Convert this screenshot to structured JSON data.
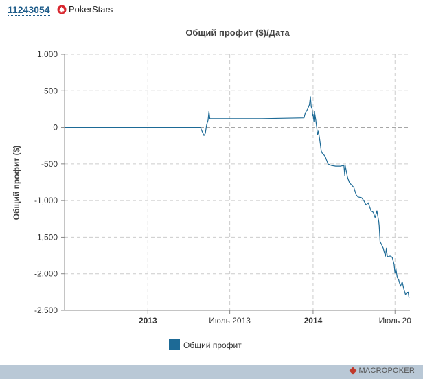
{
  "header": {
    "player_id": "11243054",
    "room_name": "PokerStars",
    "room_icon": "pokerstars-spade-icon"
  },
  "footer": {
    "brand": "MACROPOKER",
    "brand_icon": "macropoker-logo-icon"
  },
  "colors": {
    "series": "#1d6a96",
    "grid": "#cccccc",
    "axis": "#888888",
    "footer": "#b9c8d6"
  },
  "chart_data": {
    "type": "line",
    "title": "Общий профит ($)/Дата",
    "xlabel": "",
    "ylabel": "Общий профит ($)",
    "ylim": [
      -2500,
      1000
    ],
    "yticks": [
      1000,
      500,
      0,
      -500,
      -1000,
      -1500,
      -2000,
      -2500
    ],
    "ytick_labels": [
      "1,000",
      "500",
      "0",
      "-500",
      "-1,000",
      "-1,500",
      "-2,000",
      "-2,500"
    ],
    "xlim": [
      "2012-07-01",
      "2014-08-03"
    ],
    "xticks": [
      {
        "date": "2013-01-01",
        "label": "2013",
        "bold": true
      },
      {
        "date": "2013-07-01",
        "label": "Июль 2013",
        "bold": false
      },
      {
        "date": "2014-01-01",
        "label": "2014",
        "bold": true
      },
      {
        "date": "2014-07-01",
        "label": "Июль 20",
        "bold": false
      }
    ],
    "grid": true,
    "legend_position": "bottom",
    "series": [
      {
        "name": "Общий профит",
        "x": [
          "2012-07-01",
          "2013-04-27",
          "2013-05-05",
          "2013-05-08",
          "2013-05-11",
          "2013-05-14",
          "2013-05-16",
          "2013-05-18",
          "2013-09-10",
          "2013-12-12",
          "2013-12-15",
          "2013-12-20",
          "2013-12-24",
          "2013-12-26",
          "2013-12-28",
          "2013-12-30",
          "2013-12-31",
          "2014-01-01",
          "2014-01-03",
          "2014-01-04",
          "2014-01-07",
          "2014-01-09",
          "2014-01-11",
          "2014-01-13",
          "2014-01-16",
          "2014-01-19",
          "2014-01-21",
          "2014-01-23",
          "2014-01-28",
          "2014-02-03",
          "2014-02-10",
          "2014-02-20",
          "2014-03-03",
          "2014-03-10",
          "2014-03-12",
          "2014-03-13",
          "2014-03-18",
          "2014-03-22",
          "2014-03-26",
          "2014-04-01",
          "2014-04-06",
          "2014-04-10",
          "2014-04-18",
          "2014-04-23",
          "2014-04-28",
          "2014-05-03",
          "2014-05-09",
          "2014-05-14",
          "2014-05-18",
          "2014-05-22",
          "2014-05-26",
          "2014-05-27",
          "2014-05-29",
          "2014-06-05",
          "2014-06-07",
          "2014-06-10",
          "2014-06-12",
          "2014-06-14",
          "2014-06-17",
          "2014-06-18",
          "2014-06-22",
          "2014-06-25",
          "2014-06-29",
          "2014-07-01",
          "2014-07-03",
          "2014-07-06",
          "2014-07-09",
          "2014-07-13",
          "2014-07-17",
          "2014-07-20",
          "2014-07-24",
          "2014-07-30",
          "2014-08-01"
        ],
        "y": [
          0,
          0,
          -110,
          -80,
          40,
          100,
          220,
          120,
          120,
          130,
          200,
          250,
          310,
          420,
          280,
          250,
          160,
          180,
          80,
          220,
          100,
          0,
          -100,
          -50,
          -180,
          -320,
          -350,
          -360,
          -400,
          -500,
          -520,
          -530,
          -530,
          -520,
          -660,
          -520,
          -680,
          -750,
          -780,
          -820,
          -920,
          -950,
          -960,
          -1000,
          -1060,
          -1030,
          -1140,
          -1160,
          -1230,
          -1140,
          -1280,
          -1340,
          -1560,
          -1650,
          -1700,
          -1760,
          -1650,
          -1760,
          -1770,
          -1760,
          -1760,
          -1780,
          -1870,
          -1990,
          -1930,
          -2050,
          -2080,
          -2170,
          -2110,
          -2200,
          -2280,
          -2250,
          -2330
        ]
      }
    ]
  }
}
